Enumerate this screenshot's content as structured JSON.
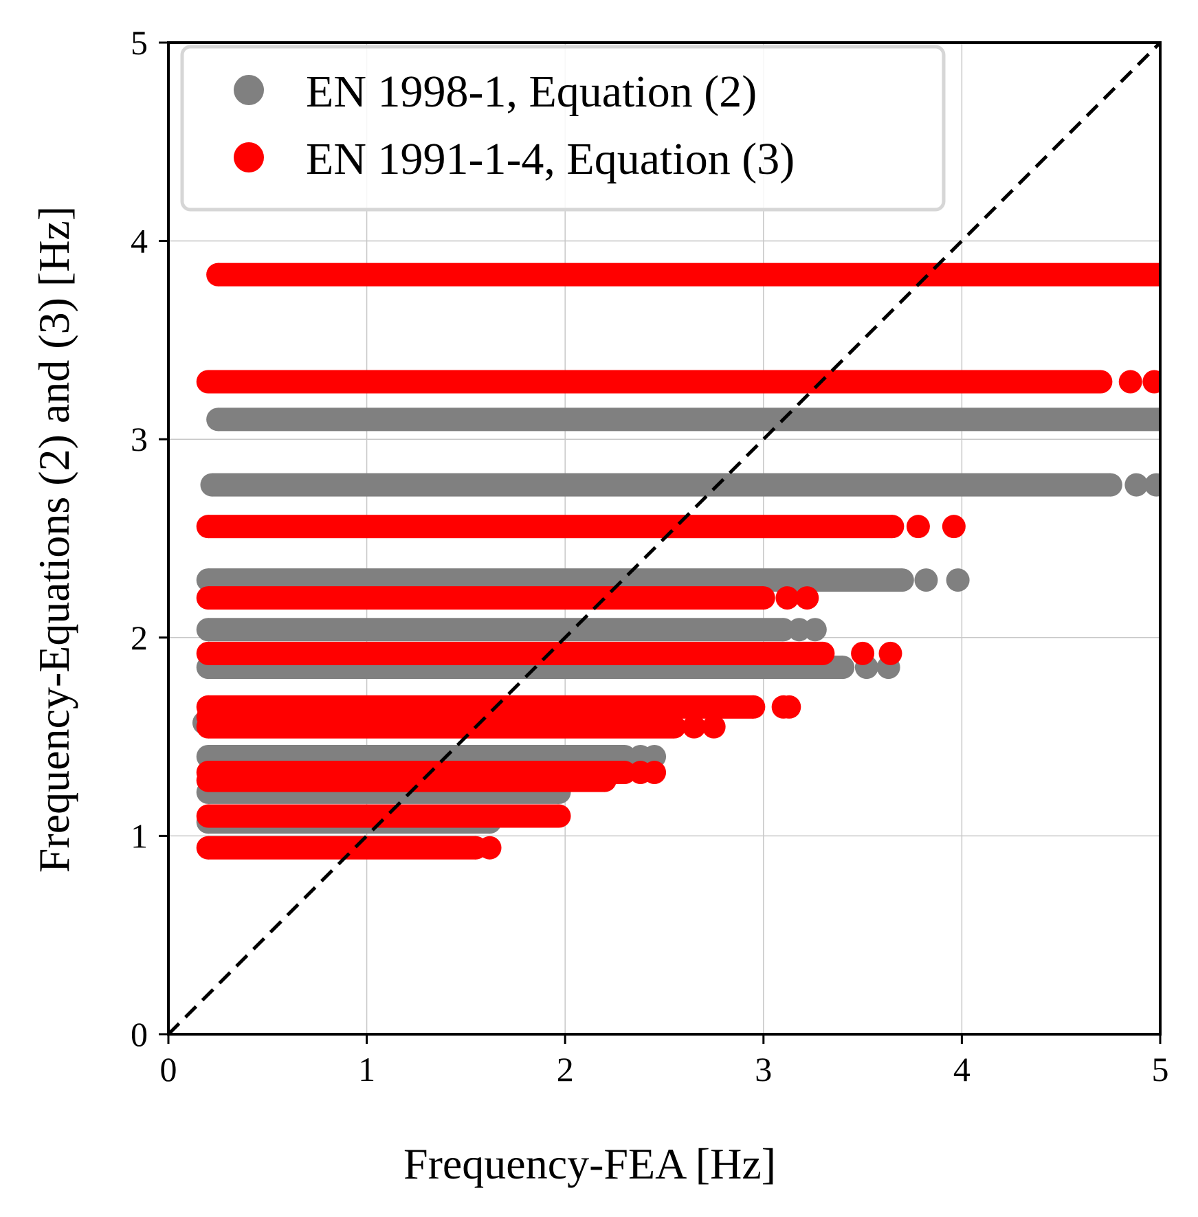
{
  "chart_data": {
    "type": "scatter",
    "title": "",
    "xlabel": "Frequency-FEA [Hz]",
    "ylabel": "Frequency-Equations (2) and (3) [Hz]",
    "xlim": [
      0,
      5
    ],
    "ylim": [
      0,
      5
    ],
    "x_ticks": [
      "0",
      "1",
      "2",
      "3",
      "4",
      "5"
    ],
    "y_ticks": [
      "0",
      "1",
      "2",
      "3",
      "4",
      "5"
    ],
    "grid": true,
    "legend_position": "top-left",
    "reference_line": {
      "style": "dashed",
      "color": "#000000",
      "from": [
        0,
        0
      ],
      "to": [
        5,
        5
      ]
    },
    "series": [
      {
        "name": "EN 1998-1, Equation (2)",
        "color": "#808080",
        "bands": [
          {
            "y": 3.1,
            "x_min": 0.25,
            "x_max": 5.0
          },
          {
            "y": 2.77,
            "x_min": 0.22,
            "x_max": 4.75,
            "outliers": [
              4.88,
              4.98
            ]
          },
          {
            "y": 2.29,
            "x_min": 0.2,
            "x_max": 3.7,
            "outliers": [
              3.82,
              3.98
            ]
          },
          {
            "y": 2.04,
            "x_min": 0.2,
            "x_max": 3.1,
            "outliers": [
              3.18,
              3.26
            ]
          },
          {
            "y": 1.85,
            "x_min": 0.2,
            "x_max": 3.4,
            "outliers": [
              3.52,
              3.63
            ]
          },
          {
            "y": 1.57,
            "x_min": 0.18,
            "x_max": 2.4
          },
          {
            "y": 1.4,
            "x_min": 0.2,
            "x_max": 2.3,
            "outliers": [
              2.38,
              2.45
            ]
          },
          {
            "y": 1.22,
            "x_min": 0.2,
            "x_max": 1.97
          },
          {
            "y": 1.07,
            "x_min": 0.2,
            "x_max": 1.62
          }
        ]
      },
      {
        "name": "EN 1991-1-4, Equation (3)",
        "color": "#ff0000",
        "bands": [
          {
            "y": 3.83,
            "x_min": 0.25,
            "x_max": 5.0
          },
          {
            "y": 3.29,
            "x_min": 0.2,
            "x_max": 4.7,
            "outliers": [
              4.85,
              4.97
            ]
          },
          {
            "y": 2.56,
            "x_min": 0.2,
            "x_max": 3.65,
            "outliers": [
              3.78,
              3.96
            ]
          },
          {
            "y": 2.2,
            "x_min": 0.2,
            "x_max": 3.0,
            "outliers": [
              3.12,
              3.22
            ]
          },
          {
            "y": 1.92,
            "x_min": 0.2,
            "x_max": 3.3,
            "outliers": [
              3.5,
              3.64
            ]
          },
          {
            "y": 1.65,
            "x_min": 0.2,
            "x_max": 2.95,
            "outliers": [
              3.1,
              3.13
            ]
          },
          {
            "y": 1.6,
            "x_min": 0.2,
            "x_max": 2.4
          },
          {
            "y": 1.55,
            "x_min": 0.2,
            "x_max": 2.55,
            "outliers": [
              2.65,
              2.75
            ]
          },
          {
            "y": 1.32,
            "x_min": 0.2,
            "x_max": 2.3,
            "outliers": [
              2.38,
              2.45
            ]
          },
          {
            "y": 1.28,
            "x_min": 0.2,
            "x_max": 2.2
          },
          {
            "y": 1.1,
            "x_min": 0.2,
            "x_max": 1.97
          },
          {
            "y": 0.94,
            "x_min": 0.2,
            "x_max": 1.55,
            "outliers": [
              1.62
            ]
          }
        ]
      }
    ]
  }
}
